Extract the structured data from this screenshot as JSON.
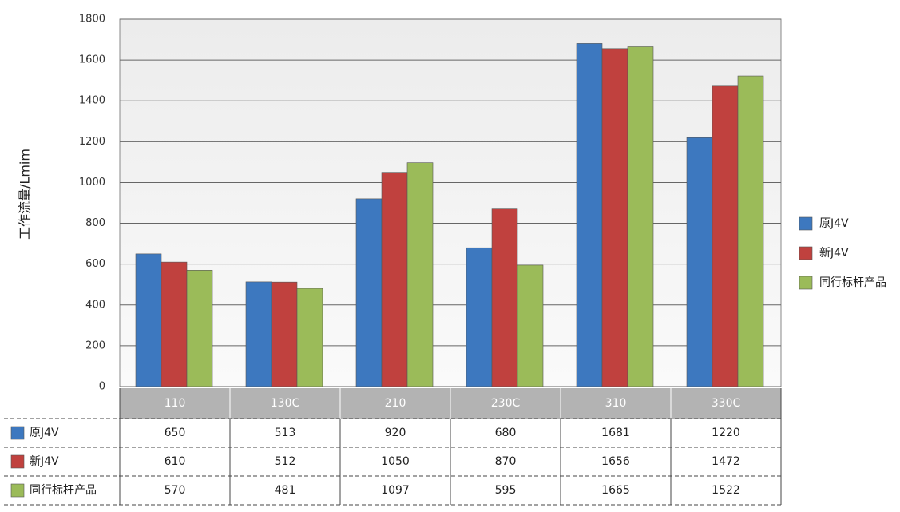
{
  "chart_data": {
    "type": "bar",
    "y_axis_label": "工作流量/Lmim",
    "categories": [
      "110",
      "130C",
      "210",
      "230C",
      "310",
      "330C"
    ],
    "series": [
      {
        "name": "原J4V",
        "color": "#3d78bf",
        "values": [
          650,
          513,
          920,
          680,
          1681,
          1220
        ]
      },
      {
        "name": "新J4V",
        "color": "#c0413e",
        "values": [
          610,
          512,
          1050,
          870,
          1656,
          1472
        ]
      },
      {
        "name": "同行标杆产品",
        "color": "#9bbb59",
        "values": [
          570,
          481,
          1097,
          595,
          1665,
          1522
        ]
      }
    ],
    "ylim": [
      0,
      1800
    ],
    "yticks": [
      0,
      200,
      400,
      600,
      800,
      1000,
      1200,
      1400,
      1600,
      1800
    ],
    "grid": true,
    "legend": "right"
  }
}
